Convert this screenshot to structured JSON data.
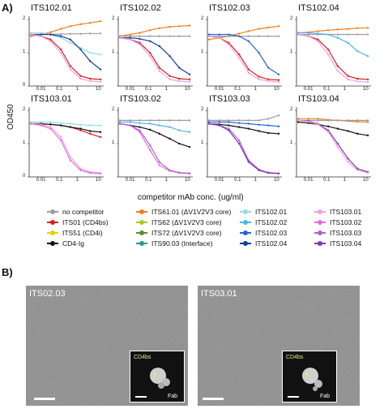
{
  "panel_a_label": "A)",
  "panel_b_label": "B)",
  "ylabel": "OD450",
  "xlabel": "competitor mAb conc. (ug/ml)",
  "y_ticks": [
    "0",
    "1",
    "2"
  ],
  "x_ticks": [
    "0.01",
    "0.1",
    "1",
    "10"
  ],
  "subplot_titles": [
    "ITS102.01",
    "ITS102.02",
    "ITS102.03",
    "ITS102.04",
    "ITS103.01",
    "ITS103.02",
    "ITS103.03",
    "ITS103.04"
  ],
  "legend": [
    {
      "label": "no competitor",
      "color": "#9e9e9e"
    },
    {
      "label": "ITS01 (CD4bs)",
      "color": "#d32020"
    },
    {
      "label": "ITS51 (CD4i)",
      "color": "#e8d400"
    },
    {
      "label": "CD4-Ig",
      "color": "#111111"
    },
    {
      "label": "ITS61.01 (ΔV1V2V3 core)",
      "color": "#f07f1a"
    },
    {
      "label": "ITS62 (ΔV1V2V3 core)",
      "color": "#a9c82b"
    },
    {
      "label": "ITS72 (ΔV1V2V3 core)",
      "color": "#5c8f28"
    },
    {
      "label": "ITS90.03 (Interface)",
      "color": "#2a9a8a"
    },
    {
      "label": "ITS102.01",
      "color": "#8fe0e6"
    },
    {
      "label": "ITS102.02",
      "color": "#4fb6ea"
    },
    {
      "label": "ITS102.03",
      "color": "#2a63d8"
    },
    {
      "label": "ITS102.04",
      "color": "#1a3a9e"
    },
    {
      "label": "ITS103.01",
      "color": "#f0a0e6"
    },
    {
      "label": "ITS103.02",
      "color": "#e070d8"
    },
    {
      "label": "ITS103.03",
      "color": "#b060d8"
    },
    {
      "label": "ITS103.04",
      "color": "#7a3aa8"
    }
  ],
  "em_panels": [
    {
      "title": "ITS02.03",
      "inset_label": "CD4bs",
      "fab_label": "Fab"
    },
    {
      "title": "ITS03.01",
      "inset_label": "CD4bs",
      "fab_label": "Fab"
    }
  ],
  "chart_data": [
    {
      "type": "line",
      "title": "ITS102.01",
      "xlabel": "competitor mAb conc. (ug/ml)",
      "ylabel": "OD450",
      "ylim": [
        0,
        2.1
      ],
      "x_scale": "log",
      "x": [
        0.003,
        0.01,
        0.03,
        0.1,
        0.3,
        1,
        3,
        10
      ],
      "series": [
        {
          "name": "no competitor",
          "values": [
            1.55,
            1.55,
            1.56,
            1.56,
            1.57,
            1.57,
            1.58,
            1.58
          ]
        },
        {
          "name": "ITS61.01 (ΔV1V2V3 core)",
          "values": [
            1.5,
            1.55,
            1.62,
            1.72,
            1.8,
            1.86,
            1.9,
            1.95
          ]
        },
        {
          "name": "ITS102.01",
          "values": [
            1.6,
            1.6,
            1.55,
            1.45,
            1.3,
            1.15,
            1.0,
            0.95
          ]
        },
        {
          "name": "ITS102.04",
          "values": [
            1.55,
            1.55,
            1.55,
            1.5,
            1.4,
            1.1,
            0.75,
            0.5
          ]
        },
        {
          "name": "ITS01 (CD4bs)",
          "values": [
            1.55,
            1.5,
            1.4,
            1.1,
            0.6,
            0.3,
            0.22,
            0.2
          ]
        },
        {
          "name": "ITS103.01",
          "values": [
            1.55,
            1.5,
            1.35,
            1.0,
            0.5,
            0.22,
            0.15,
            0.13
          ]
        }
      ]
    },
    {
      "type": "line",
      "title": "ITS102.02",
      "xlabel": "competitor mAb conc. (ug/ml)",
      "ylabel": "OD450",
      "ylim": [
        0,
        2.1
      ],
      "x_scale": "log",
      "x": [
        0.003,
        0.01,
        0.03,
        0.1,
        0.3,
        1,
        3,
        10
      ],
      "series": [
        {
          "name": "ITS61.01 (ΔV1V2V3 core)",
          "values": [
            1.5,
            1.55,
            1.6,
            1.68,
            1.74,
            1.78,
            1.8,
            1.82
          ]
        },
        {
          "name": "no competitor",
          "values": [
            1.5,
            1.5,
            1.5,
            1.5,
            1.5,
            1.5,
            1.5,
            1.5
          ]
        },
        {
          "name": "ITS102.04",
          "values": [
            1.45,
            1.45,
            1.42,
            1.35,
            1.2,
            0.9,
            0.55,
            0.35
          ]
        },
        {
          "name": "ITS01 (CD4bs)",
          "values": [
            1.45,
            1.4,
            1.3,
            1.0,
            0.55,
            0.3,
            0.22,
            0.2
          ]
        },
        {
          "name": "ITS103.01",
          "values": [
            1.45,
            1.4,
            1.25,
            0.9,
            0.45,
            0.2,
            0.15,
            0.13
          ]
        }
      ]
    },
    {
      "type": "line",
      "title": "ITS102.03",
      "xlabel": "competitor mAb conc. (ug/ml)",
      "ylabel": "OD450",
      "ylim": [
        0,
        2.1
      ],
      "x_scale": "log",
      "x": [
        0.003,
        0.01,
        0.03,
        0.1,
        0.3,
        1,
        3,
        10
      ],
      "series": [
        {
          "name": "ITS61.01 (ΔV1V2V3 core)",
          "values": [
            1.4,
            1.45,
            1.5,
            1.58,
            1.65,
            1.72,
            1.76,
            1.8
          ]
        },
        {
          "name": "no competitor",
          "values": [
            1.5,
            1.5,
            1.5,
            1.5,
            1.5,
            1.5,
            1.5,
            1.5
          ]
        },
        {
          "name": "ITS102.03",
          "values": [
            1.55,
            1.55,
            1.55,
            1.5,
            1.35,
            1.0,
            0.55,
            0.35
          ]
        },
        {
          "name": "ITS01 (CD4bs)",
          "values": [
            1.5,
            1.45,
            1.3,
            0.95,
            0.5,
            0.28,
            0.2,
            0.18
          ]
        },
        {
          "name": "ITS103.01",
          "values": [
            1.5,
            1.45,
            1.25,
            0.85,
            0.4,
            0.2,
            0.15,
            0.12
          ]
        }
      ]
    },
    {
      "type": "line",
      "title": "ITS102.04",
      "xlabel": "competitor mAb conc. (ug/ml)",
      "ylabel": "OD450",
      "ylim": [
        0,
        2.1
      ],
      "x_scale": "log",
      "x": [
        0.003,
        0.01,
        0.03,
        0.1,
        0.3,
        1,
        3,
        10
      ],
      "series": [
        {
          "name": "ITS61.01 (ΔV1V2V3 core)",
          "values": [
            1.6,
            1.62,
            1.65,
            1.68,
            1.7,
            1.72,
            1.74,
            1.75
          ]
        },
        {
          "name": "no competitor",
          "values": [
            1.55,
            1.55,
            1.55,
            1.55,
            1.55,
            1.55,
            1.55,
            1.55
          ]
        },
        {
          "name": "ITS102.02",
          "values": [
            1.6,
            1.6,
            1.58,
            1.55,
            1.45,
            1.3,
            1.05,
            0.9
          ]
        },
        {
          "name": "ITS01 (CD4bs)",
          "values": [
            1.55,
            1.5,
            1.4,
            1.1,
            0.6,
            0.3,
            0.22,
            0.2
          ]
        },
        {
          "name": "ITS103.01",
          "values": [
            1.55,
            1.5,
            1.35,
            0.95,
            0.45,
            0.2,
            0.14,
            0.12
          ]
        }
      ]
    },
    {
      "type": "line",
      "title": "ITS103.01",
      "xlabel": "competitor mAb conc. (ug/ml)",
      "ylabel": "OD450",
      "ylim": [
        0,
        2.1
      ],
      "x_scale": "log",
      "x": [
        0.003,
        0.01,
        0.03,
        0.1,
        0.3,
        1,
        3,
        10
      ],
      "series": [
        {
          "name": "ITS102.01",
          "values": [
            1.65,
            1.65,
            1.65,
            1.62,
            1.6,
            1.57,
            1.55,
            1.55
          ]
        },
        {
          "name": "ITS01 (CD4bs)",
          "values": [
            1.6,
            1.6,
            1.58,
            1.55,
            1.5,
            1.4,
            1.3,
            1.2
          ]
        },
        {
          "name": "CD4-Ig",
          "values": [
            1.6,
            1.6,
            1.58,
            1.55,
            1.5,
            1.45,
            1.38,
            1.35
          ]
        },
        {
          "name": "ITS103.01",
          "values": [
            1.6,
            1.58,
            1.5,
            1.2,
            0.6,
            0.25,
            0.15,
            0.12
          ]
        },
        {
          "name": "ITS103.02",
          "values": [
            1.6,
            1.55,
            1.45,
            1.1,
            0.5,
            0.2,
            0.12,
            0.1
          ]
        }
      ]
    },
    {
      "type": "line",
      "title": "ITS103.02",
      "xlabel": "competitor mAb conc. (ug/ml)",
      "ylabel": "OD450",
      "ylim": [
        0,
        2.1
      ],
      "x_scale": "log",
      "x": [
        0.003,
        0.01,
        0.03,
        0.1,
        0.3,
        1,
        3,
        10
      ],
      "series": [
        {
          "name": "no competitor",
          "values": [
            1.7,
            1.7,
            1.7,
            1.7,
            1.7,
            1.7,
            1.7,
            1.7
          ]
        },
        {
          "name": "ITS102.02",
          "values": [
            1.65,
            1.65,
            1.62,
            1.6,
            1.55,
            1.5,
            1.4,
            1.35
          ]
        },
        {
          "name": "CD4-Ig",
          "values": [
            1.6,
            1.55,
            1.5,
            1.42,
            1.3,
            1.15,
            1.0,
            0.9
          ]
        },
        {
          "name": "ITS103.02",
          "values": [
            1.6,
            1.55,
            1.35,
            0.8,
            0.35,
            0.18,
            0.12,
            0.1
          ]
        },
        {
          "name": "ITS103.03",
          "values": [
            1.6,
            1.55,
            1.4,
            0.95,
            0.45,
            0.2,
            0.13,
            0.11
          ]
        }
      ]
    },
    {
      "type": "line",
      "title": "ITS103.03",
      "xlabel": "competitor mAb conc. (ug/ml)",
      "ylabel": "OD450",
      "ylim": [
        0,
        2.1
      ],
      "x_scale": "log",
      "x": [
        0.003,
        0.01,
        0.03,
        0.1,
        0.3,
        1,
        3,
        10
      ],
      "series": [
        {
          "name": "no competitor",
          "values": [
            1.7,
            1.7,
            1.7,
            1.7,
            1.7,
            1.7,
            1.75,
            1.85
          ]
        },
        {
          "name": "ITS102.03",
          "values": [
            1.65,
            1.65,
            1.65,
            1.62,
            1.6,
            1.57,
            1.55,
            1.52
          ]
        },
        {
          "name": "CD4-Ig",
          "values": [
            1.6,
            1.58,
            1.55,
            1.5,
            1.45,
            1.38,
            1.32,
            1.3
          ]
        },
        {
          "name": "ITS103.03",
          "values": [
            1.6,
            1.55,
            1.45,
            1.1,
            0.5,
            0.22,
            0.13,
            0.11
          ]
        },
        {
          "name": "ITS103.04",
          "values": [
            1.6,
            1.55,
            1.4,
            1.0,
            0.45,
            0.2,
            0.12,
            0.1
          ]
        }
      ]
    },
    {
      "type": "line",
      "title": "ITS103.04",
      "xlabel": "competitor mAb conc. (ug/ml)",
      "ylabel": "OD450",
      "ylim": [
        0,
        2.1
      ],
      "x_scale": "log",
      "x": [
        0.003,
        0.01,
        0.03,
        0.1,
        0.3,
        1,
        3,
        10
      ],
      "series": [
        {
          "name": "ITS61.01 (ΔV1V2V3 core)",
          "values": [
            1.75,
            1.75,
            1.75,
            1.72,
            1.7,
            1.68,
            1.66,
            1.65
          ]
        },
        {
          "name": "no competitor",
          "values": [
            1.7,
            1.7,
            1.7,
            1.7,
            1.7,
            1.7,
            1.7,
            1.7
          ]
        },
        {
          "name": "CD4-Ig",
          "values": [
            1.65,
            1.62,
            1.58,
            1.52,
            1.45,
            1.38,
            1.3,
            1.25
          ]
        },
        {
          "name": "ITS103.04",
          "values": [
            1.7,
            1.68,
            1.6,
            1.4,
            1.0,
            0.55,
            0.25,
            0.15
          ]
        },
        {
          "name": "ITS103.01",
          "values": [
            1.7,
            1.66,
            1.58,
            1.35,
            0.9,
            0.45,
            0.2,
            0.12
          ]
        }
      ]
    }
  ]
}
